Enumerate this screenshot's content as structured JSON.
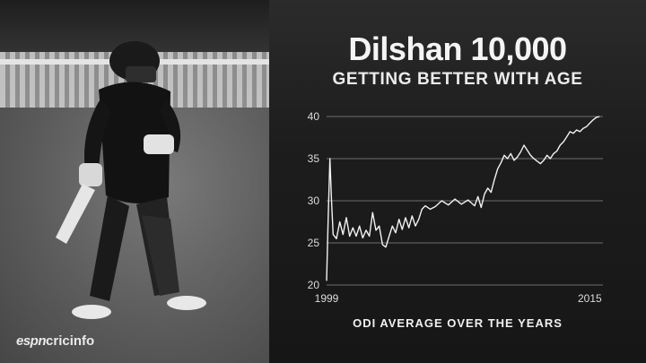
{
  "brand": {
    "logo_text_1": "espn",
    "logo_text_2": "cricinfo"
  },
  "chart_data": {
    "type": "line",
    "title": "Dilshan 10,000",
    "subtitle": "GETTING BETTER WITH AGE",
    "xlabel": "ODI AVERAGE OVER THE YEARS",
    "ylabel": "",
    "ylim": [
      20,
      40
    ],
    "xlim": [
      1999.0,
      2015.8
    ],
    "grid": true,
    "yticks": [
      20,
      25,
      30,
      35,
      40
    ],
    "xtick_labels": [
      {
        "value": 1999.0,
        "label": "1999"
      },
      {
        "value": 2015.0,
        "label": "2015"
      }
    ],
    "series": [
      {
        "values": [
          [
            1999.0,
            20.5
          ],
          [
            1999.1,
            28.0
          ],
          [
            1999.2,
            35.0
          ],
          [
            1999.3,
            30.0
          ],
          [
            1999.4,
            26.0
          ],
          [
            1999.6,
            25.5
          ],
          [
            1999.8,
            27.5
          ],
          [
            2000.0,
            26.0
          ],
          [
            2000.2,
            28.0
          ],
          [
            2000.4,
            25.8
          ],
          [
            2000.6,
            26.8
          ],
          [
            2000.8,
            25.8
          ],
          [
            2001.0,
            27.0
          ],
          [
            2001.2,
            25.6
          ],
          [
            2001.4,
            26.5
          ],
          [
            2001.6,
            25.8
          ],
          [
            2001.8,
            28.6
          ],
          [
            2002.0,
            26.5
          ],
          [
            2002.2,
            27.0
          ],
          [
            2002.4,
            24.8
          ],
          [
            2002.6,
            24.5
          ],
          [
            2002.8,
            25.8
          ],
          [
            2003.0,
            27.0
          ],
          [
            2003.2,
            26.2
          ],
          [
            2003.4,
            27.8
          ],
          [
            2003.6,
            26.6
          ],
          [
            2003.8,
            28.0
          ],
          [
            2004.0,
            26.8
          ],
          [
            2004.2,
            28.2
          ],
          [
            2004.4,
            27.0
          ],
          [
            2004.6,
            27.8
          ],
          [
            2004.8,
            29.0
          ],
          [
            2005.0,
            29.4
          ],
          [
            2005.3,
            29.0
          ],
          [
            2005.6,
            29.3
          ],
          [
            2006.0,
            30.0
          ],
          [
            2006.4,
            29.5
          ],
          [
            2006.8,
            30.2
          ],
          [
            2007.2,
            29.6
          ],
          [
            2007.6,
            30.1
          ],
          [
            2008.0,
            29.4
          ],
          [
            2008.2,
            30.5
          ],
          [
            2008.4,
            29.2
          ],
          [
            2008.6,
            30.8
          ],
          [
            2008.8,
            31.5
          ],
          [
            2009.0,
            31.0
          ],
          [
            2009.2,
            32.5
          ],
          [
            2009.4,
            33.8
          ],
          [
            2009.6,
            34.5
          ],
          [
            2009.8,
            35.4
          ],
          [
            2010.0,
            35.0
          ],
          [
            2010.2,
            35.6
          ],
          [
            2010.4,
            34.8
          ],
          [
            2010.6,
            35.2
          ],
          [
            2010.8,
            35.8
          ],
          [
            2011.0,
            36.6
          ],
          [
            2011.2,
            36.0
          ],
          [
            2011.4,
            35.4
          ],
          [
            2011.6,
            35.0
          ],
          [
            2011.8,
            34.7
          ],
          [
            2012.0,
            34.4
          ],
          [
            2012.2,
            34.8
          ],
          [
            2012.4,
            35.4
          ],
          [
            2012.6,
            35.0
          ],
          [
            2012.8,
            35.6
          ],
          [
            2013.0,
            35.9
          ],
          [
            2013.2,
            36.6
          ],
          [
            2013.4,
            37.0
          ],
          [
            2013.6,
            37.6
          ],
          [
            2013.8,
            38.2
          ],
          [
            2014.0,
            38.0
          ],
          [
            2014.2,
            38.4
          ],
          [
            2014.4,
            38.2
          ],
          [
            2014.6,
            38.6
          ],
          [
            2014.8,
            38.8
          ],
          [
            2015.0,
            39.2
          ],
          [
            2015.2,
            39.6
          ],
          [
            2015.4,
            39.9
          ],
          [
            2015.6,
            40.0
          ]
        ]
      }
    ]
  }
}
